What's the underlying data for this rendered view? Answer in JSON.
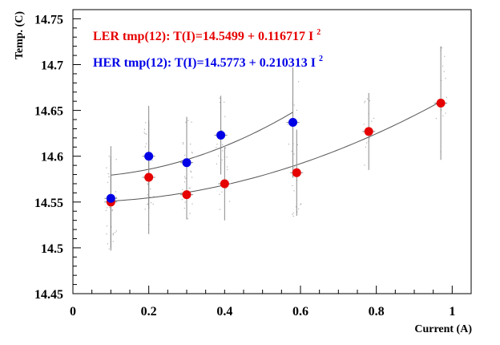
{
  "chart_data": {
    "type": "scatter",
    "ylabel": "Temp. (C)",
    "xlabel": "Current (A)",
    "xlim": [
      0,
      1.05
    ],
    "ylim": [
      14.45,
      14.76
    ],
    "x_ticks": [
      0,
      0.2,
      0.4,
      0.6,
      0.8,
      1
    ],
    "x_tick_labels": [
      "0",
      "0.2",
      "0.4",
      "0.6",
      "0.8",
      "1"
    ],
    "y_ticks": [
      14.45,
      14.5,
      14.55,
      14.6,
      14.65,
      14.7,
      14.75
    ],
    "y_tick_labels": [
      "14.45",
      "14.5",
      "14.55",
      "14.6",
      "14.65",
      "14.7",
      "14.75"
    ],
    "grid": false,
    "series": [
      {
        "color": "#e60000",
        "points": [
          {
            "x": 0.1,
            "y": 14.55,
            "err": 0.05
          },
          {
            "x": 0.2,
            "y": 14.577,
            "err": 0.062
          },
          {
            "x": 0.3,
            "y": 14.558,
            "err": 0.027
          },
          {
            "x": 0.4,
            "y": 14.57,
            "err": 0.04
          },
          {
            "x": 0.59,
            "y": 14.582,
            "err": 0.047
          },
          {
            "x": 0.78,
            "y": 14.627,
            "err": 0.042
          },
          {
            "x": 0.97,
            "y": 14.658,
            "err": 0.062
          }
        ],
        "fit": {
          "a": 14.5499,
          "b": 0.116717,
          "x_from": 0.1,
          "x_to": 0.97
        }
      },
      {
        "color": "#0000e6",
        "points": [
          {
            "x": 0.1,
            "y": 14.554,
            "err": 0.057
          },
          {
            "x": 0.2,
            "y": 14.6,
            "err": 0.055
          },
          {
            "x": 0.3,
            "y": 14.593,
            "err": 0.05
          },
          {
            "x": 0.39,
            "y": 14.623,
            "err": 0.043
          },
          {
            "x": 0.58,
            "y": 14.637,
            "err": 0.06
          }
        ],
        "fit": {
          "a": 14.5773,
          "b": 0.210313,
          "x_from": 0.1,
          "x_to": 0.58
        }
      }
    ],
    "annotations": [
      {
        "text": "LER tmp(12): T(I)=14.5499 + 0.116717 I",
        "sup": "2",
        "color": "#e60000"
      },
      {
        "text": "HER tmp(12): T(I)=14.5773 + 0.210313 I",
        "sup": "2",
        "color": "#0000e6"
      }
    ]
  }
}
